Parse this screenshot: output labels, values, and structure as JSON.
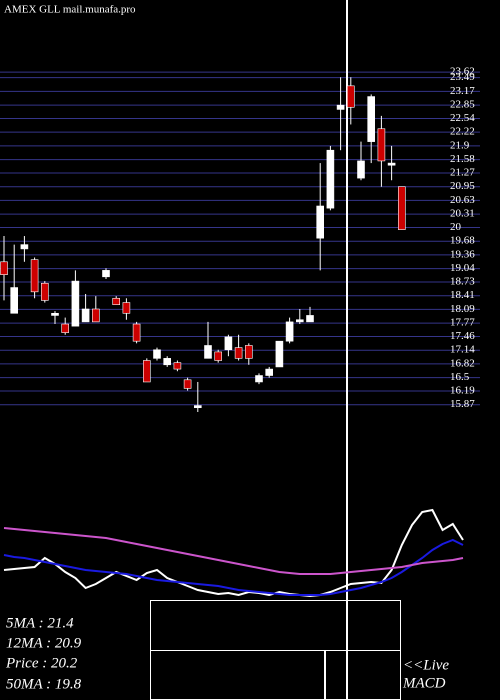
{
  "chart_data": [
    {
      "type": "candlestick",
      "title": "AMEX  GLL mail.munafa.pro",
      "categories": [
        null,
        null,
        null,
        null,
        null,
        null,
        null,
        null,
        null,
        null,
        null,
        null,
        null,
        null,
        null,
        null,
        null,
        null,
        null,
        null,
        null,
        null,
        null,
        null,
        null,
        null,
        null,
        null,
        null,
        null,
        null,
        null,
        null,
        null,
        null,
        null,
        null,
        null,
        null,
        null
      ],
      "open": [
        19.2,
        18.0,
        19.5,
        19.25,
        18.7,
        17.95,
        17.75,
        17.7,
        17.8,
        18.1,
        18.85,
        18.35,
        18.25,
        17.75,
        16.9,
        16.95,
        16.8,
        16.85,
        16.45,
        15.8,
        16.95,
        17.1,
        17.15,
        17.2,
        17.25,
        16.4,
        16.55,
        16.75,
        17.35,
        17.8,
        17.8,
        19.75,
        20.45,
        22.75,
        23.3,
        21.15,
        22.0,
        22.3,
        21.45,
        20.95
      ],
      "high": [
        19.8,
        19.6,
        19.8,
        19.3,
        18.75,
        18.05,
        17.9,
        19.0,
        18.45,
        18.4,
        19.05,
        18.4,
        18.35,
        17.8,
        16.95,
        17.2,
        17.0,
        16.9,
        16.5,
        16.4,
        17.8,
        17.15,
        17.5,
        17.5,
        17.3,
        16.6,
        16.75,
        17.35,
        17.9,
        18.1,
        18.15,
        21.5,
        21.9,
        23.5,
        23.5,
        22.0,
        23.1,
        22.6,
        21.9,
        20.95
      ],
      "low": [
        18.3,
        18.0,
        19.2,
        18.35,
        18.25,
        17.75,
        17.5,
        17.7,
        17.8,
        17.8,
        18.8,
        18.2,
        17.85,
        17.3,
        16.4,
        16.9,
        16.75,
        16.65,
        16.2,
        15.7,
        16.95,
        16.85,
        17.0,
        16.9,
        16.8,
        16.35,
        16.5,
        16.75,
        17.3,
        17.75,
        17.8,
        19.0,
        20.4,
        21.8,
        22.4,
        21.1,
        21.5,
        20.95,
        21.1,
        19.95
      ],
      "close": [
        18.9,
        18.6,
        19.6,
        18.5,
        18.3,
        18.0,
        17.55,
        18.75,
        18.1,
        17.8,
        19.0,
        18.2,
        18.0,
        17.35,
        16.4,
        17.15,
        16.95,
        16.7,
        16.25,
        15.85,
        17.25,
        16.9,
        17.45,
        16.95,
        16.95,
        16.55,
        16.7,
        17.35,
        17.8,
        17.85,
        17.95,
        20.5,
        21.8,
        22.85,
        22.8,
        21.55,
        23.05,
        21.55,
        21.5,
        19.95
      ],
      "up_color": "#ffffff",
      "down_color": "#cc0000",
      "grid": true,
      "grid_color": "#35358a",
      "ylim": [
        15.7,
        25.3
      ],
      "yticks": [
        23.62,
        23.49,
        23.17,
        22.85,
        22.54,
        22.22,
        21.9,
        21.58,
        21.27,
        20.95,
        20.63,
        20.31,
        20,
        19.68,
        19.36,
        19.04,
        18.73,
        18.41,
        18.09,
        17.77,
        17.46,
        17.14,
        16.82,
        16.5,
        16.19,
        15.87
      ]
    },
    {
      "type": "line",
      "ylim": [
        0,
        100
      ],
      "series": [
        {
          "color": "#ffffff",
          "values": [
            30,
            31,
            32,
            33,
            42,
            36,
            28,
            22,
            12,
            16,
            22,
            28,
            24,
            20,
            27,
            30,
            22,
            18,
            14,
            10,
            8,
            6,
            7,
            5,
            8,
            7,
            5,
            8,
            6,
            5,
            4,
            5,
            8,
            12,
            16,
            17,
            18,
            17,
            30,
            55,
            75,
            88,
            90,
            70,
            76,
            60
          ]
        },
        {
          "color": "#1a1ae0",
          "values": [
            45,
            43,
            42,
            40,
            38,
            36,
            34,
            32,
            30,
            29,
            28,
            27,
            26,
            24,
            22,
            20,
            19,
            18,
            17,
            16,
            15,
            14,
            12,
            10,
            9,
            8,
            7,
            6,
            5,
            5,
            5,
            5,
            6,
            8,
            10,
            12,
            15,
            18,
            22,
            28,
            35,
            42,
            50,
            56,
            60,
            55
          ]
        },
        {
          "color": "#cc55cc",
          "values": [
            72,
            71,
            70,
            69,
            68,
            67,
            66,
            65,
            64,
            63,
            62,
            60,
            58,
            56,
            54,
            52,
            50,
            48,
            46,
            44,
            42,
            40,
            38,
            36,
            34,
            32,
            30,
            28,
            27,
            26,
            26,
            26,
            26,
            27,
            28,
            29,
            30,
            31,
            32,
            33,
            35,
            37,
            38,
            39,
            40,
            42
          ]
        }
      ]
    }
  ],
  "stats": [
    "5MA : 21.4",
    "12MA : 20.9",
    "Price  : 20.2",
    "50MA : 19.8"
  ],
  "live": "<<Live",
  "macd": "MACD"
}
